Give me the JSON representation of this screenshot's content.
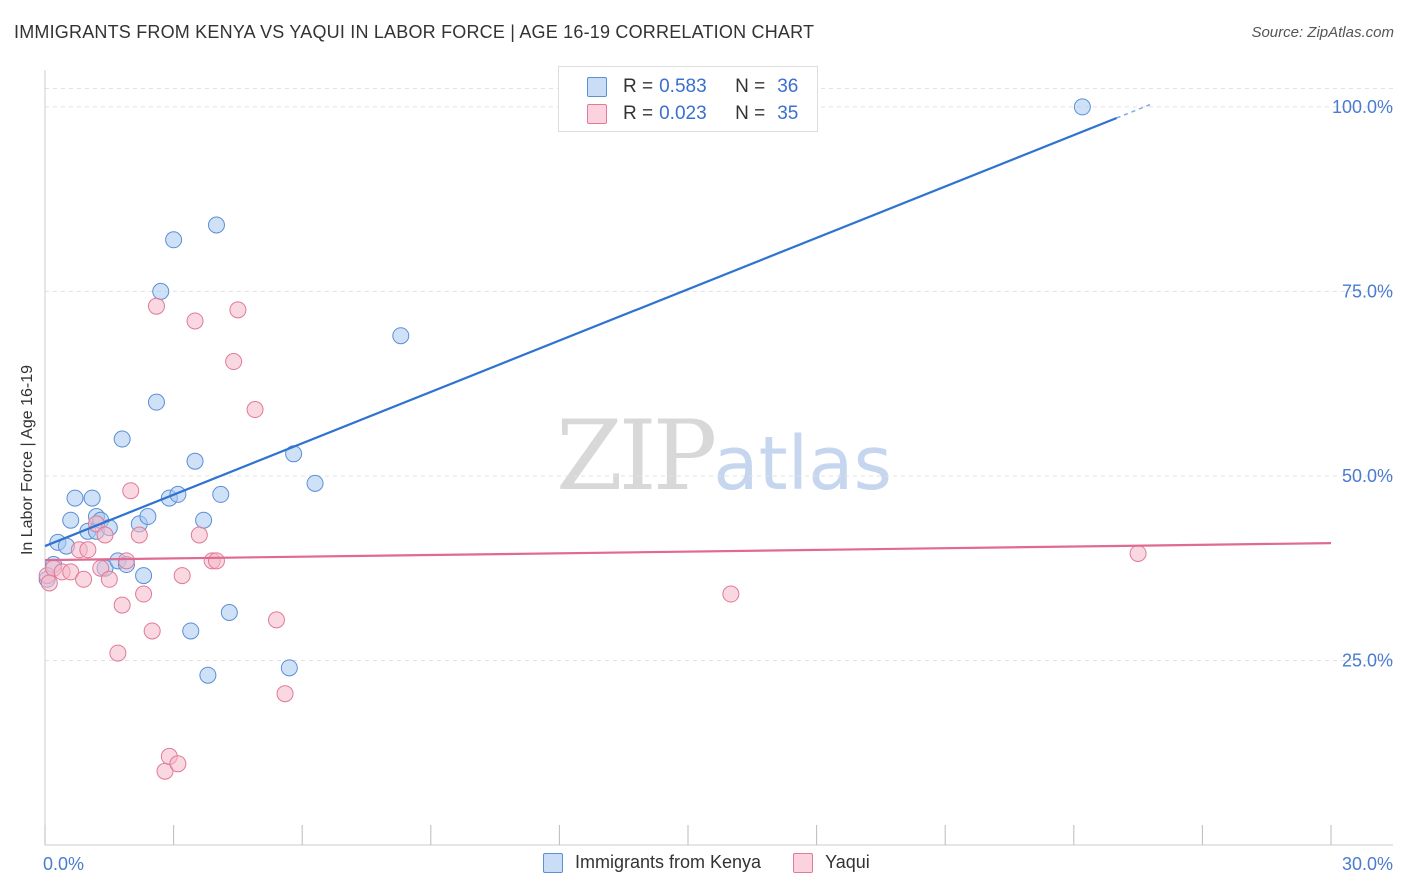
{
  "header": {
    "title": "IMMIGRANTS FROM KENYA VS YAQUI IN LABOR FORCE | AGE 16-19 CORRELATION CHART",
    "source": "Source: ZipAtlas.com"
  },
  "watermark": {
    "zip": "ZIP",
    "atlas": "atlas"
  },
  "legend": {
    "rows": [
      {
        "r_label": "R =",
        "r_value": "0.583",
        "n_label": "N =",
        "n_value": "36",
        "color": "#a8c8f0"
      },
      {
        "r_label": "R =",
        "r_value": "0.023",
        "n_label": "N =",
        "n_value": "35",
        "color": "#f6b8c8"
      }
    ]
  },
  "bottom_legend": {
    "kenya": "Immigrants from Kenya",
    "yaqui": "Yaqui"
  },
  "colors": {
    "kenya_fill": "#a8c8f0",
    "kenya_stroke": "#5b8fd6",
    "kenya_line": "#2f72d0",
    "yaqui_fill": "#f6b8c8",
    "yaqui_stroke": "#e07a98",
    "yaqui_line": "#e06a92",
    "axis_text": "#4a7bd0"
  },
  "chart_data": {
    "type": "scatter",
    "title": "IMMIGRANTS FROM KENYA VS YAQUI IN LABOR FORCE | AGE 16-19 CORRELATION CHART",
    "xlabel": "",
    "ylabel": "In Labor Force | Age 16-19",
    "xlim": [
      0,
      30
    ],
    "ylim": [
      0,
      105
    ],
    "x_tick_labels": [
      "0.0%",
      "30.0%"
    ],
    "y_ticks": [
      25,
      50,
      75,
      100
    ],
    "y_tick_labels": [
      "25.0%",
      "50.0%",
      "75.0%",
      "100.0%"
    ],
    "grid": true,
    "series": [
      {
        "name": "Immigrants from Kenya",
        "r": 0.583,
        "n": 36,
        "trend": {
          "x": [
            0,
            25.0
          ],
          "y": [
            40.5,
            98.5
          ]
        },
        "points": [
          {
            "x": 0.05,
            "y": 36.0
          },
          {
            "x": 0.2,
            "y": 38.0
          },
          {
            "x": 0.3,
            "y": 41.0
          },
          {
            "x": 0.5,
            "y": 40.5
          },
          {
            "x": 0.6,
            "y": 44.0
          },
          {
            "x": 0.7,
            "y": 47.0
          },
          {
            "x": 1.0,
            "y": 42.5
          },
          {
            "x": 1.1,
            "y": 47.0
          },
          {
            "x": 1.2,
            "y": 42.5
          },
          {
            "x": 1.2,
            "y": 44.5
          },
          {
            "x": 1.3,
            "y": 44.0
          },
          {
            "x": 1.4,
            "y": 37.5
          },
          {
            "x": 1.5,
            "y": 43.0
          },
          {
            "x": 1.7,
            "y": 38.5
          },
          {
            "x": 1.8,
            "y": 55.0
          },
          {
            "x": 1.9,
            "y": 38.0
          },
          {
            "x": 2.2,
            "y": 43.5
          },
          {
            "x": 2.3,
            "y": 36.5
          },
          {
            "x": 2.4,
            "y": 44.5
          },
          {
            "x": 2.6,
            "y": 60.0
          },
          {
            "x": 2.7,
            "y": 75.0
          },
          {
            "x": 2.9,
            "y": 47.0
          },
          {
            "x": 3.0,
            "y": 82.0
          },
          {
            "x": 3.1,
            "y": 47.5
          },
          {
            "x": 3.4,
            "y": 29.0
          },
          {
            "x": 3.5,
            "y": 52.0
          },
          {
            "x": 3.7,
            "y": 44.0
          },
          {
            "x": 3.8,
            "y": 23.0
          },
          {
            "x": 4.0,
            "y": 84.0
          },
          {
            "x": 4.1,
            "y": 47.5
          },
          {
            "x": 4.3,
            "y": 31.5
          },
          {
            "x": 5.7,
            "y": 24.0
          },
          {
            "x": 5.8,
            "y": 53.0
          },
          {
            "x": 6.3,
            "y": 49.0
          },
          {
            "x": 8.3,
            "y": 69.0
          },
          {
            "x": 24.2,
            "y": 100.0
          }
        ]
      },
      {
        "name": "Yaqui",
        "r": 0.023,
        "n": 35,
        "trend": {
          "x": [
            0,
            30
          ],
          "y": [
            38.6,
            40.9
          ]
        },
        "points": [
          {
            "x": 0.05,
            "y": 36.5
          },
          {
            "x": 0.2,
            "y": 37.5
          },
          {
            "x": 0.4,
            "y": 37.0
          },
          {
            "x": 0.6,
            "y": 37.0
          },
          {
            "x": 0.8,
            "y": 40.0
          },
          {
            "x": 0.9,
            "y": 36.0
          },
          {
            "x": 1.0,
            "y": 40.0
          },
          {
            "x": 1.2,
            "y": 43.5
          },
          {
            "x": 1.3,
            "y": 37.5
          },
          {
            "x": 1.4,
            "y": 42.0
          },
          {
            "x": 1.5,
            "y": 36.0
          },
          {
            "x": 1.7,
            "y": 26.0
          },
          {
            "x": 1.8,
            "y": 32.5
          },
          {
            "x": 1.9,
            "y": 38.5
          },
          {
            "x": 2.0,
            "y": 48.0
          },
          {
            "x": 2.2,
            "y": 42.0
          },
          {
            "x": 2.3,
            "y": 34.0
          },
          {
            "x": 2.5,
            "y": 29.0
          },
          {
            "x": 2.6,
            "y": 73.0
          },
          {
            "x": 2.8,
            "y": 10.0
          },
          {
            "x": 2.9,
            "y": 12.0
          },
          {
            "x": 3.1,
            "y": 11.0
          },
          {
            "x": 3.2,
            "y": 36.5
          },
          {
            "x": 3.5,
            "y": 71.0
          },
          {
            "x": 3.6,
            "y": 42.0
          },
          {
            "x": 3.9,
            "y": 38.5
          },
          {
            "x": 4.0,
            "y": 38.5
          },
          {
            "x": 4.4,
            "y": 65.5
          },
          {
            "x": 4.5,
            "y": 72.5
          },
          {
            "x": 4.9,
            "y": 59.0
          },
          {
            "x": 5.4,
            "y": 30.5
          },
          {
            "x": 5.6,
            "y": 20.5
          },
          {
            "x": 16.0,
            "y": 34.0
          },
          {
            "x": 25.5,
            "y": 39.5
          },
          {
            "x": 0.1,
            "y": 35.5
          }
        ]
      }
    ]
  }
}
